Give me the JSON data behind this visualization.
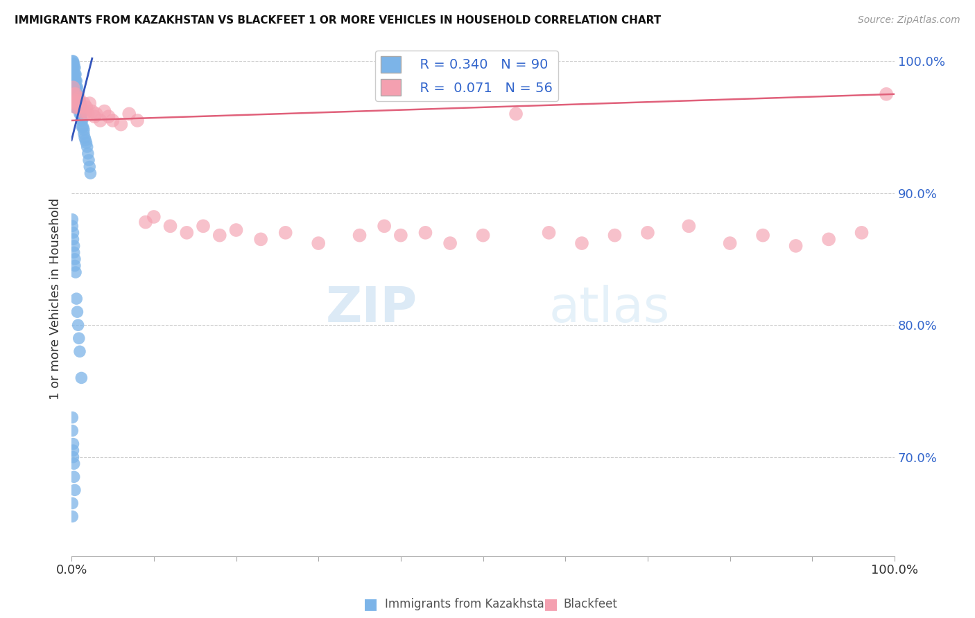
{
  "title": "IMMIGRANTS FROM KAZAKHSTAN VS BLACKFEET 1 OR MORE VEHICLES IN HOUSEHOLD CORRELATION CHART",
  "source": "Source: ZipAtlas.com",
  "ylabel": "1 or more Vehicles in Household",
  "xlim": [
    0.0,
    1.0
  ],
  "ylim": [
    0.625,
    1.015
  ],
  "yticks": [
    0.7,
    0.8,
    0.9,
    1.0
  ],
  "ytick_labels": [
    "70.0%",
    "80.0%",
    "90.0%",
    "100.0%"
  ],
  "xticks": [
    0.0,
    0.1,
    0.2,
    0.3,
    0.4,
    0.5,
    0.6,
    0.7,
    0.8,
    0.9,
    1.0
  ],
  "xtick_labels": [
    "0.0%",
    "",
    "",
    "",
    "",
    "",
    "",
    "",
    "",
    "",
    "100.0%"
  ],
  "blue_R": 0.34,
  "blue_N": 90,
  "pink_R": 0.071,
  "pink_N": 56,
  "blue_scatter_color": "#7CB4E8",
  "pink_scatter_color": "#F4A0B0",
  "blue_line_color": "#3355BB",
  "pink_line_color": "#E0607A",
  "label_color": "#3366CC",
  "tick_color": "#3366CC",
  "grid_color": "#CCCCCC",
  "source_color": "#999999",
  "watermark_color": "#D8E8F5",
  "blue_x": [
    0.001,
    0.001,
    0.001,
    0.001,
    0.001,
    0.002,
    0.002,
    0.002,
    0.002,
    0.002,
    0.002,
    0.002,
    0.003,
    0.003,
    0.003,
    0.003,
    0.003,
    0.003,
    0.003,
    0.004,
    0.004,
    0.004,
    0.004,
    0.004,
    0.004,
    0.004,
    0.005,
    0.005,
    0.005,
    0.005,
    0.005,
    0.005,
    0.006,
    0.006,
    0.006,
    0.006,
    0.007,
    0.007,
    0.007,
    0.007,
    0.008,
    0.008,
    0.008,
    0.009,
    0.009,
    0.01,
    0.01,
    0.01,
    0.011,
    0.011,
    0.012,
    0.012,
    0.013,
    0.013,
    0.014,
    0.015,
    0.015,
    0.016,
    0.017,
    0.018,
    0.019,
    0.02,
    0.021,
    0.022,
    0.023,
    0.001,
    0.001,
    0.002,
    0.002,
    0.003,
    0.003,
    0.004,
    0.004,
    0.005,
    0.006,
    0.007,
    0.008,
    0.009,
    0.01,
    0.012,
    0.001,
    0.001,
    0.002,
    0.002,
    0.002,
    0.003,
    0.003,
    0.004,
    0.001,
    0.001
  ],
  "blue_y": [
    1.0,
    0.995,
    0.99,
    0.985,
    0.98,
    1.0,
    0.998,
    0.995,
    0.99,
    0.985,
    0.98,
    0.975,
    0.998,
    0.995,
    0.99,
    0.985,
    0.98,
    0.975,
    0.97,
    0.995,
    0.99,
    0.985,
    0.98,
    0.975,
    0.97,
    0.965,
    0.99,
    0.985,
    0.98,
    0.975,
    0.97,
    0.965,
    0.985,
    0.98,
    0.975,
    0.97,
    0.98,
    0.975,
    0.97,
    0.965,
    0.975,
    0.97,
    0.965,
    0.97,
    0.965,
    0.97,
    0.965,
    0.96,
    0.965,
    0.96,
    0.96,
    0.955,
    0.955,
    0.95,
    0.95,
    0.948,
    0.945,
    0.942,
    0.94,
    0.938,
    0.935,
    0.93,
    0.925,
    0.92,
    0.915,
    0.88,
    0.875,
    0.87,
    0.865,
    0.86,
    0.855,
    0.85,
    0.845,
    0.84,
    0.82,
    0.81,
    0.8,
    0.79,
    0.78,
    0.76,
    0.73,
    0.72,
    0.71,
    0.705,
    0.7,
    0.695,
    0.685,
    0.675,
    0.665,
    0.655
  ],
  "pink_x": [
    0.002,
    0.003,
    0.003,
    0.004,
    0.005,
    0.005,
    0.006,
    0.007,
    0.008,
    0.009,
    0.01,
    0.012,
    0.014,
    0.015,
    0.016,
    0.018,
    0.02,
    0.022,
    0.025,
    0.028,
    0.03,
    0.035,
    0.04,
    0.045,
    0.05,
    0.06,
    0.07,
    0.08,
    0.09,
    0.1,
    0.12,
    0.14,
    0.16,
    0.18,
    0.2,
    0.23,
    0.26,
    0.3,
    0.35,
    0.38,
    0.4,
    0.43,
    0.46,
    0.5,
    0.54,
    0.58,
    0.62,
    0.66,
    0.7,
    0.75,
    0.8,
    0.84,
    0.88,
    0.92,
    0.96,
    0.99
  ],
  "pink_y": [
    0.98,
    0.975,
    0.97,
    0.968,
    0.975,
    0.965,
    0.97,
    0.968,
    0.965,
    0.972,
    0.968,
    0.965,
    0.962,
    0.968,
    0.96,
    0.965,
    0.96,
    0.968,
    0.962,
    0.958,
    0.96,
    0.955,
    0.962,
    0.958,
    0.955,
    0.952,
    0.96,
    0.955,
    0.878,
    0.882,
    0.875,
    0.87,
    0.875,
    0.868,
    0.872,
    0.865,
    0.87,
    0.862,
    0.868,
    0.875,
    0.868,
    0.87,
    0.862,
    0.868,
    0.96,
    0.87,
    0.862,
    0.868,
    0.87,
    0.875,
    0.862,
    0.868,
    0.86,
    0.865,
    0.87,
    0.975
  ],
  "blue_trend_x": [
    0.0,
    0.025
  ],
  "blue_trend_y": [
    0.94,
    1.002
  ],
  "pink_trend_x": [
    0.0,
    1.0
  ],
  "pink_trend_y": [
    0.955,
    0.975
  ]
}
